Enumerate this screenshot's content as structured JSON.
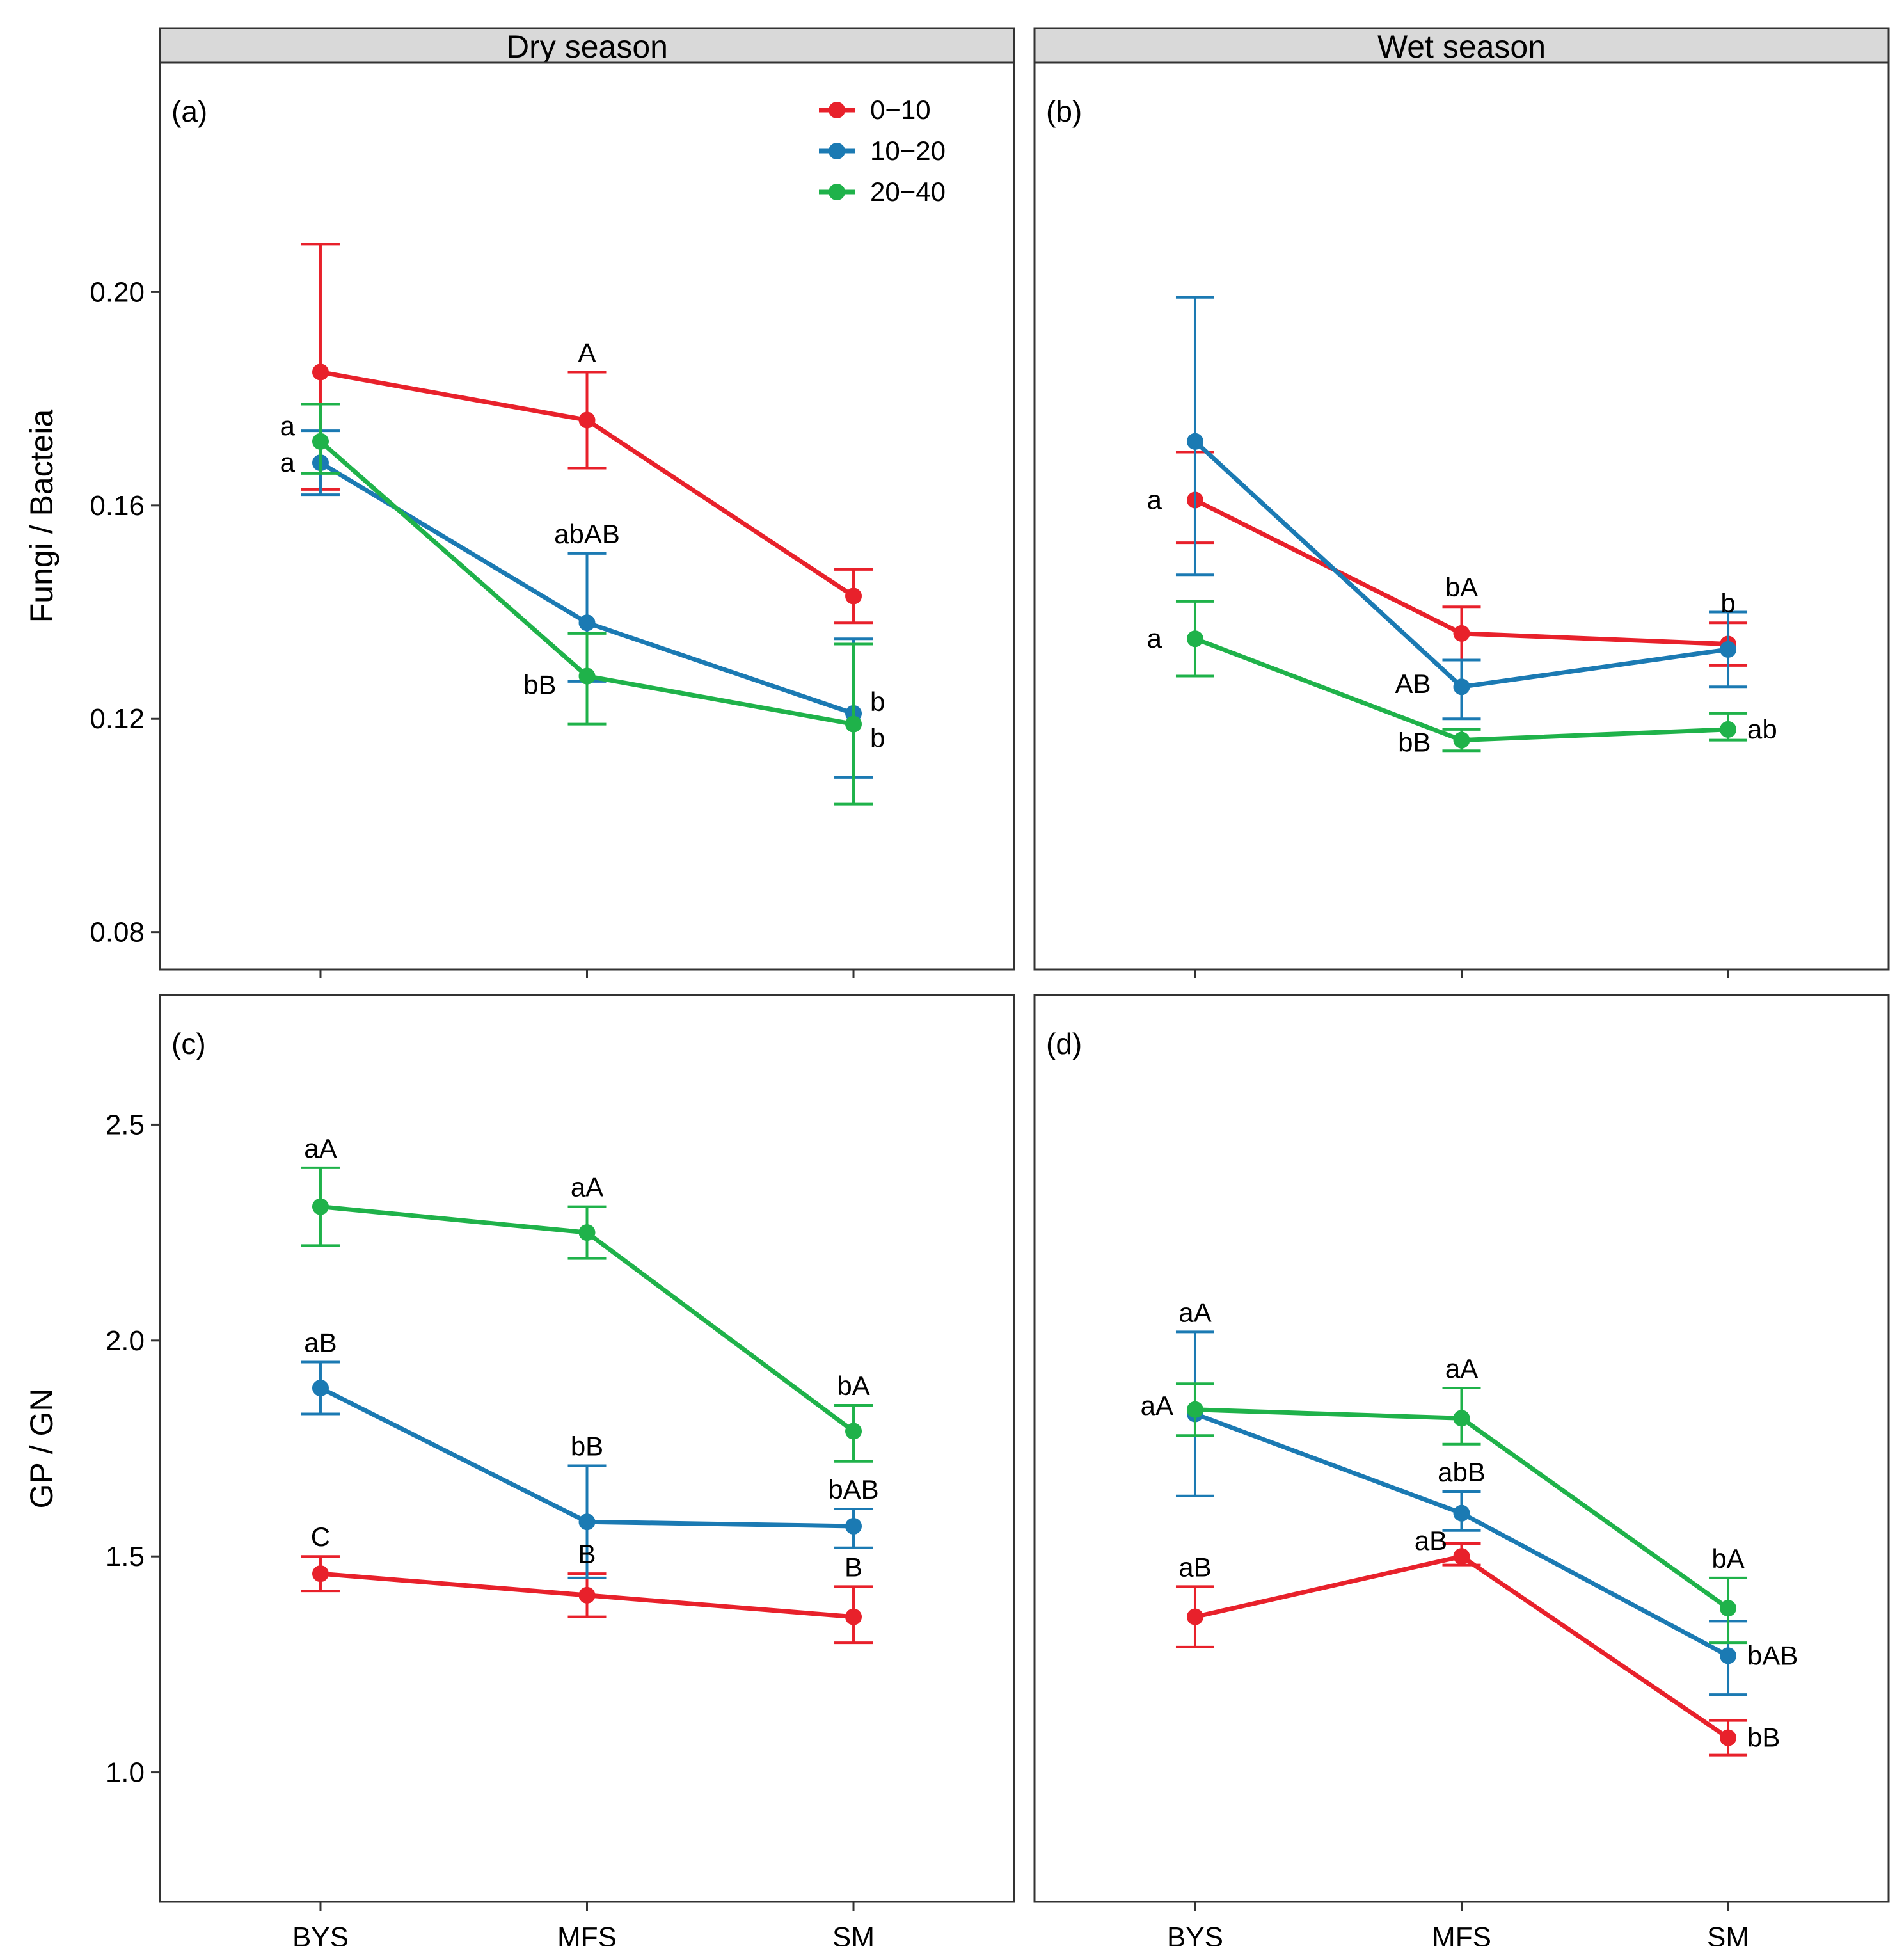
{
  "strips": [
    "Dry season",
    "Wet season"
  ],
  "y_titles": [
    "Fungi / Bacteia",
    "GP / GN"
  ],
  "legend": {
    "entries": [
      {
        "label": "0−10",
        "color": "#e8212b"
      },
      {
        "label": "10−20",
        "color": "#1b7ab3"
      },
      {
        "label": "20−40",
        "color": "#1fb24a"
      }
    ]
  },
  "chart_data": {
    "type": "line",
    "categories": [
      "BYS",
      "MFS",
      "SM"
    ],
    "series_colors": {
      "0-10": "#e8212b",
      "10-20": "#1b7ab3",
      "20-40": "#1fb24a"
    },
    "rows": [
      {
        "ylabel": "Fungi / Bacteia",
        "ylim": [
          0.073,
          0.243
        ],
        "ticks": [
          0.08,
          0.12,
          0.16,
          0.2
        ],
        "tick_labels": [
          "0.08",
          "0.12",
          "0.16",
          "0.20"
        ]
      },
      {
        "ylabel": "GP / GN",
        "ylim": [
          0.7,
          2.8
        ],
        "ticks": [
          1.0,
          1.5,
          2.0,
          2.5
        ],
        "tick_labels": [
          "1.0",
          "1.5",
          "2.0",
          "2.5"
        ]
      }
    ],
    "panels": [
      {
        "tag": "(a)",
        "row": 0,
        "col": 0,
        "series": [
          {
            "name": "0-10",
            "values": [
              0.185,
              0.176,
              0.143
            ],
            "err_low": [
              0.163,
              0.167,
              0.138
            ],
            "err_high": [
              0.209,
              0.185,
              0.148
            ],
            "labels": [
              "",
              "A",
              ""
            ]
          },
          {
            "name": "10-20",
            "values": [
              0.168,
              0.138,
              0.121
            ],
            "err_low": [
              0.162,
              0.127,
              0.109
            ],
            "err_high": [
              0.174,
              0.151,
              0.135
            ],
            "labels": [
              "a",
              "abAB",
              "b"
            ]
          },
          {
            "name": "20-40",
            "values": [
              0.172,
              0.128,
              0.119
            ],
            "err_low": [
              0.166,
              0.119,
              0.104
            ],
            "err_high": [
              0.179,
              0.136,
              0.134
            ],
            "labels": [
              "a",
              "bB",
              "b"
            ]
          }
        ]
      },
      {
        "tag": "(b)",
        "row": 0,
        "col": 1,
        "series": [
          {
            "name": "0-10",
            "values": [
              0.161,
              0.136,
              0.134
            ],
            "err_low": [
              0.153,
              0.131,
              0.13
            ],
            "err_high": [
              0.17,
              0.141,
              0.138
            ],
            "labels": [
              "a",
              "bA",
              "b"
            ]
          },
          {
            "name": "10-20",
            "values": [
              0.172,
              0.126,
              0.133
            ],
            "err_low": [
              0.147,
              0.12,
              0.126
            ],
            "err_high": [
              0.199,
              0.131,
              0.14
            ],
            "labels": [
              "",
              "AB",
              ""
            ]
          },
          {
            "name": "20-40",
            "values": [
              0.135,
              0.116,
              0.118
            ],
            "err_low": [
              0.128,
              0.114,
              0.116
            ],
            "err_high": [
              0.142,
              0.118,
              0.121
            ],
            "labels": [
              "a",
              "bB",
              "ab"
            ]
          }
        ]
      },
      {
        "tag": "(c)",
        "row": 1,
        "col": 0,
        "series": [
          {
            "name": "0-10",
            "values": [
              1.46,
              1.41,
              1.36
            ],
            "err_low": [
              1.42,
              1.36,
              1.3
            ],
            "err_high": [
              1.5,
              1.46,
              1.43
            ],
            "labels": [
              "C",
              "B",
              "B"
            ]
          },
          {
            "name": "10-20",
            "values": [
              1.89,
              1.58,
              1.57
            ],
            "err_low": [
              1.83,
              1.45,
              1.52
            ],
            "err_high": [
              1.95,
              1.71,
              1.61
            ],
            "labels": [
              "aB",
              "bB",
              "bAB"
            ]
          },
          {
            "name": "20-40",
            "values": [
              2.31,
              2.25,
              1.79
            ],
            "err_low": [
              2.22,
              2.19,
              1.72
            ],
            "err_high": [
              2.4,
              2.31,
              1.85
            ],
            "labels": [
              "aA",
              "aA",
              "bA"
            ]
          }
        ]
      },
      {
        "tag": "(d)",
        "row": 1,
        "col": 1,
        "series": [
          {
            "name": "0-10",
            "values": [
              1.36,
              1.5,
              1.08
            ],
            "err_low": [
              1.29,
              1.48,
              1.04
            ],
            "err_high": [
              1.43,
              1.53,
              1.12
            ],
            "labels": [
              "aB",
              "aB",
              "bB"
            ]
          },
          {
            "name": "10-20",
            "values": [
              1.83,
              1.6,
              1.27
            ],
            "err_low": [
              1.64,
              1.56,
              1.18
            ],
            "err_high": [
              2.02,
              1.65,
              1.35
            ],
            "labels": [
              "aA",
              "abB",
              "bAB"
            ]
          },
          {
            "name": "20-40",
            "values": [
              1.84,
              1.82,
              1.38
            ],
            "err_low": [
              1.78,
              1.76,
              1.3
            ],
            "err_high": [
              1.9,
              1.89,
              1.45
            ],
            "labels": [
              "aA",
              "aA",
              "bA"
            ]
          }
        ]
      }
    ]
  }
}
